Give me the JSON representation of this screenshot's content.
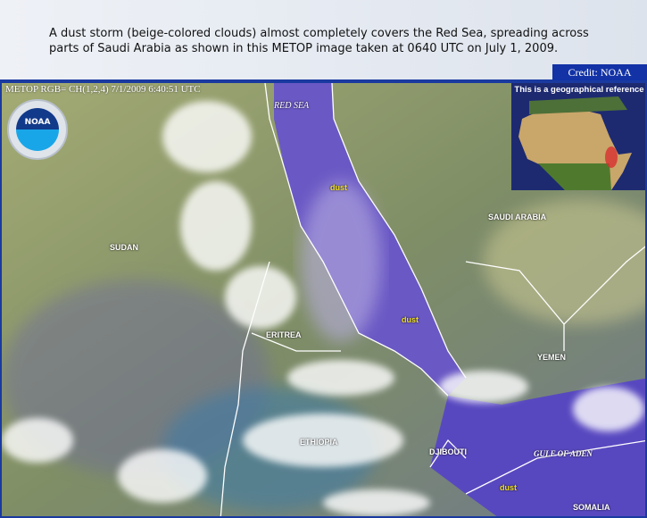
{
  "caption": "A dust storm (beige-colored clouds) almost completely covers the Red Sea, spreading across parts of Saudi Arabia as shown in this METOP image taken at 0640 UTC on July 1, 2009.",
  "credit": "Credit: NOAA",
  "image": {
    "stamp": "METOP RGB= CH(1,2,4) 7/1/2009 6:40:51 UTC",
    "logo": "NOAA",
    "inset_title": "This is a geographical reference",
    "labels": {
      "red_sea": "RED SEA",
      "dust1": "dust",
      "sudan": "SUDAN",
      "saudi_arabia": "SAUDI ARABIA",
      "dust2": "dust",
      "eritrea": "ERITREA",
      "yemen": "YEMEN",
      "ethiopia": "ETHIOPIA",
      "djibouti": "DJIBOUTI",
      "gulf_of_aden": "GULF OF ADEN",
      "dust3": "dust",
      "somalia": "SOMALIA"
    }
  },
  "colors": {
    "frame": "#1a3aa0",
    "land": "#8c9a68",
    "sea": "#6a58c4",
    "dust_label": "#f0e020"
  }
}
